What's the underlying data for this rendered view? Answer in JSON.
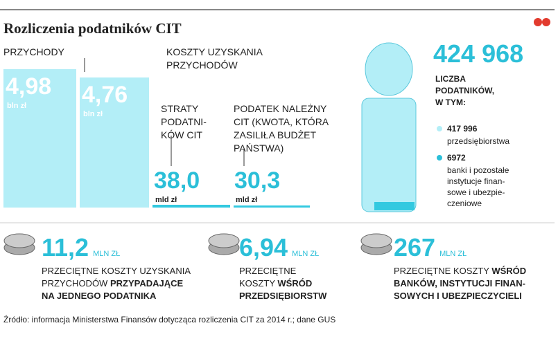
{
  "title": "Rozliczenia podatników CIT",
  "revenue": {
    "lines": [
      "PRZYCHODY"
    ],
    "value": "4,98",
    "unit": "bln zł"
  },
  "costs": {
    "lines": [
      "KOSZTY UZYSKANIA",
      "PRZYCHODÓW"
    ],
    "value": "4,76",
    "unit": "bln zł"
  },
  "losses": {
    "lines": [
      "STRATY",
      "PODATNI-",
      "KÓW CIT"
    ],
    "value": "38,0",
    "unit": "mld zł"
  },
  "tax": {
    "lines": [
      "PODATEK NALEŻNY",
      "CIT (KWOTA, KTÓRA",
      "ZASILIŁA BUDŻET",
      "PAŃSTWA)"
    ],
    "value": "30,3",
    "unit": "mld zł"
  },
  "taxpayers": {
    "value": "424 968",
    "lines": [
      "LICZBA",
      "PODATNIKÓW,",
      "W TYM:"
    ],
    "items": [
      {
        "value": "417 996",
        "lines": [
          "przedsiębiorstwa"
        ]
      },
      {
        "value": "6972",
        "lines": [
          "banki i pozostałe",
          "instytucje finan-",
          "sowe i ubezpie-",
          "czeniowe"
        ]
      }
    ]
  },
  "stats": [
    {
      "value": "11,2",
      "unit": "MLN ZŁ",
      "lines": [
        [
          {
            "t": "PRZECIĘTNE KOSZTY UZYSKANIA",
            "b": false
          }
        ],
        [
          {
            "t": "PRZYCHODÓW ",
            "b": false
          },
          {
            "t": "PRZYPADAJĄCE",
            "b": true
          }
        ],
        [
          {
            "t": "NA JEDNEGO PODATNIKA",
            "b": true
          }
        ]
      ]
    },
    {
      "value": "6,94",
      "unit": "MLN ZŁ",
      "lines": [
        [
          {
            "t": "PRZECIĘTNE",
            "b": false
          }
        ],
        [
          {
            "t": "KOSZTY ",
            "b": false
          },
          {
            "t": "WŚRÓD",
            "b": true
          }
        ],
        [
          {
            "t": "PRZEDSIĘBIORSTW",
            "b": true
          }
        ]
      ]
    },
    {
      "value": "267",
      "unit": "MLN ZŁ",
      "lines": [
        [
          {
            "t": "PRZECIĘTNE KOSZTY ",
            "b": false
          },
          {
            "t": "WŚRÓD",
            "b": true
          }
        ],
        [
          {
            "t": "BANKÓW, INSTYTUCJI FINAN-",
            "b": true
          }
        ],
        [
          {
            "t": "SOWYCH I UBEZPIECZYCIELI",
            "b": true
          }
        ]
      ]
    }
  ],
  "source": "Źródło: informacja Ministerstwa Finansów dotycząca rozliczenia CIT za 2014 r.; dane GUS"
}
